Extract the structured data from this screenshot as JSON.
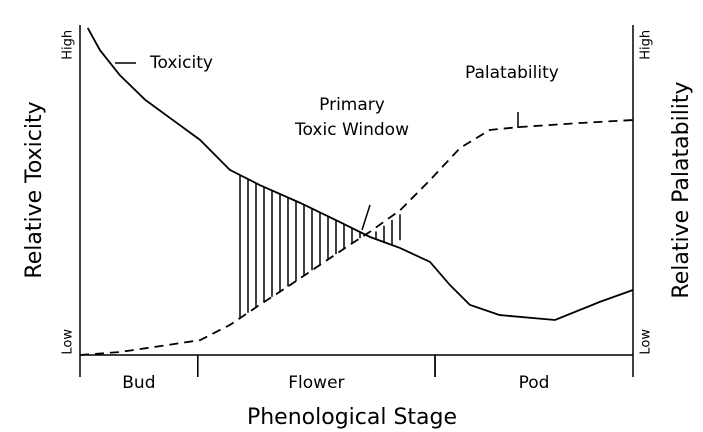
{
  "chart_data": {
    "type": "line",
    "xlabel": "Phenological Stage",
    "ylabel": "Relative Toxicity",
    "y2label": "Relative Palatability",
    "xlim": [
      0,
      100
    ],
    "ylim": [
      0,
      100
    ],
    "y2lim": [
      0,
      100
    ],
    "yticks": [
      {
        "value": 4,
        "label": "Low"
      },
      {
        "value": 94,
        "label": "High"
      }
    ],
    "y2ticks": [
      {
        "value": 4,
        "label": "Low"
      },
      {
        "value": 94,
        "label": "High"
      }
    ],
    "stages": [
      {
        "label": "Bud",
        "from": 0,
        "to": 21.3
      },
      {
        "label": "Flower",
        "from": 21.3,
        "to": 64.2
      },
      {
        "label": "Pod",
        "from": 64.2,
        "to": 100
      }
    ],
    "series": [
      {
        "name": "Toxicity",
        "color": "#000000",
        "style": "solid",
        "x": [
          1.4,
          3.6,
          7.2,
          11.8,
          16.3,
          21.7,
          27.1,
          32.5,
          39.8,
          47.0,
          52.4,
          57.9,
          63.3,
          66.9,
          70.5,
          75.9,
          85.9,
          94.0,
          100
        ],
        "values": [
          99.1,
          92.4,
          84.8,
          77.3,
          71.8,
          65.2,
          56.1,
          51.5,
          46.1,
          40.3,
          35.8,
          32.4,
          28.2,
          21.2,
          15.2,
          12.1,
          10.6,
          16.1,
          19.7
        ]
      },
      {
        "name": "Palatability",
        "color": "#000000",
        "style": "dashed",
        "axis": "y2",
        "x": [
          0,
          7.2,
          14.5,
          21.7,
          27.1,
          32.5,
          38.0,
          43.4,
          47.9,
          52.4,
          57.9,
          63.3,
          68.7,
          74.1,
          79.6,
          90.4,
          100
        ],
        "values": [
          0,
          0.9,
          2.7,
          4.5,
          9.1,
          15.2,
          21.2,
          27.3,
          32.4,
          37.3,
          43.9,
          53.0,
          62.7,
          68.2,
          69.1,
          70.3,
          71.2
        ]
      }
    ],
    "annotations": [
      "Primary",
      "Toxic Window"
    ]
  }
}
